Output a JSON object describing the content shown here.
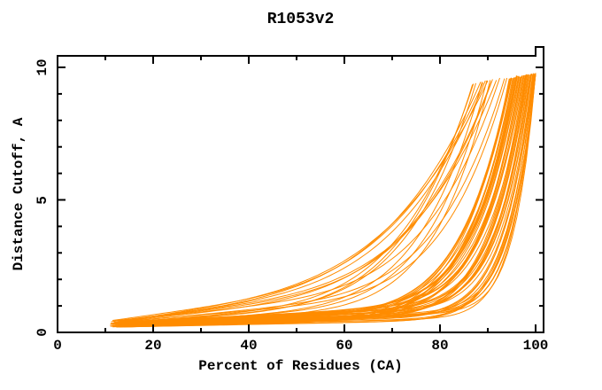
{
  "page": {
    "background": "#ffffff"
  },
  "chart_data": {
    "type": "line",
    "title": "R1053v2",
    "xlabel": "Percent of Residues (CA)",
    "ylabel": "Distance Cutoff, A",
    "xlim": [
      0,
      101.7
    ],
    "ylim": [
      0,
      10.43
    ],
    "x_ticks_major": [
      0,
      20,
      40,
      60,
      80,
      100
    ],
    "x_ticks_minor": [
      10,
      30,
      50,
      70,
      90
    ],
    "y_ticks_major": [
      0,
      5,
      10
    ],
    "y_ticks_minor": [
      1,
      2,
      3,
      4,
      6,
      7,
      8,
      9
    ],
    "grid": false,
    "legend": null,
    "line_color": "#ff8c00",
    "frame_color": "#000000",
    "n_series": 66,
    "series_model": "GDT cumulative curve per model: y = y0 + s*(x-x0) + (ytop - y0 - s*(xe-x0)) * ((x-x0)/(xe-x0))^p, for x in [x0, xe]; x = percent of CA residues, y = distance cutoff in Angstroms",
    "series_params_key": [
      "x0",
      "y0",
      "s",
      "xe",
      "p",
      "ytop"
    ],
    "series_params": [
      [
        11.0,
        0.3,
        0.005,
        96.0,
        9.0,
        9.65
      ],
      [
        11.4,
        0.33,
        0.0065,
        97.5,
        10.5,
        9.7
      ],
      [
        11.8,
        0.24,
        0.0045,
        95.0,
        8.0,
        9.6
      ],
      [
        12.2,
        0.36,
        0.008,
        98.0,
        11.0,
        9.72
      ],
      [
        12.6,
        0.31,
        0.0058,
        96.5,
        9.5,
        9.68
      ],
      [
        13.0,
        0.34,
        0.0072,
        99.0,
        12.0,
        9.74
      ],
      [
        13.4,
        0.22,
        0.0049,
        94.5,
        8.5,
        9.58
      ],
      [
        13.8,
        0.37,
        0.0085,
        97.0,
        10.0,
        9.66
      ],
      [
        11.2,
        0.32,
        0.0061,
        98.5,
        13.0,
        9.7
      ],
      [
        11.6,
        0.35,
        0.0078,
        95.5,
        9.0,
        9.62
      ],
      [
        12.0,
        0.25,
        0.0052,
        99.5,
        14.0,
        9.75
      ],
      [
        12.4,
        0.38,
        0.009,
        96.0,
        9.8,
        9.69
      ],
      [
        12.8,
        0.29,
        0.0047,
        97.8,
        11.5,
        9.71
      ],
      [
        13.2,
        0.33,
        0.0069,
        94.8,
        8.2,
        9.6
      ],
      [
        13.6,
        0.36,
        0.0082,
        98.2,
        12.5,
        9.73
      ],
      [
        14.0,
        0.31,
        0.0055,
        96.8,
        10.2,
        9.64
      ],
      [
        11.1,
        0.34,
        0.0074,
        99.2,
        13.5,
        9.76
      ],
      [
        11.5,
        0.21,
        0.0044,
        95.2,
        8.8,
        9.59
      ],
      [
        11.9,
        0.37,
        0.0087,
        97.2,
        10.8,
        9.7
      ],
      [
        12.3,
        0.32,
        0.0059,
        98.8,
        12.8,
        9.72
      ],
      [
        12.7,
        0.35,
        0.0076,
        95.8,
        9.2,
        9.63
      ],
      [
        13.1,
        0.26,
        0.0051,
        99.8,
        15.0,
        9.77
      ],
      [
        13.5,
        0.38,
        0.0092,
        96.2,
        9.6,
        9.67
      ],
      [
        13.9,
        0.29,
        0.0046,
        97.6,
        11.2,
        9.7
      ],
      [
        11.3,
        0.33,
        0.0067,
        94.6,
        8.4,
        9.57
      ],
      [
        11.7,
        0.36,
        0.0081,
        98.4,
        12.2,
        9.74
      ],
      [
        12.1,
        0.27,
        0.0054,
        96.6,
        10.4,
        9.65
      ],
      [
        12.5,
        0.34,
        0.0071,
        99.4,
        13.8,
        9.75
      ],
      [
        12.9,
        0.2,
        0.0043,
        95.4,
        8.6,
        9.6
      ],
      [
        13.3,
        0.37,
        0.0088,
        97.4,
        10.6,
        9.68
      ],
      [
        13.7,
        0.32,
        0.0062,
        98.6,
        12.6,
        9.73
      ],
      [
        14.1,
        0.35,
        0.0079,
        96.4,
        9.4,
        9.66
      ],
      [
        11.0,
        0.24,
        0.0053,
        99.6,
        14.5,
        9.78
      ],
      [
        11.8,
        0.38,
        0.0091,
        96.1,
        9.7,
        9.69
      ],
      [
        12.6,
        0.28,
        0.0048,
        97.9,
        11.8,
        9.71
      ],
      [
        13.4,
        0.33,
        0.0066,
        94.9,
        8.3,
        9.61
      ],
      [
        14.2,
        0.36,
        0.0083,
        98.1,
        12.3,
        9.74
      ],
      [
        11.4,
        0.26,
        0.0056,
        96.9,
        10.1,
        9.65
      ],
      [
        12.2,
        0.34,
        0.0073,
        99.1,
        13.2,
        9.76
      ],
      [
        13.0,
        0.22,
        0.0045,
        95.6,
        8.9,
        9.62
      ],
      [
        11.2,
        0.4,
        0.024,
        89.5,
        4.5,
        9.5
      ],
      [
        11.6,
        0.42,
        0.021,
        91.0,
        5.0,
        9.55
      ],
      [
        12.0,
        0.38,
        0.026,
        88.5,
        4.2,
        9.45
      ],
      [
        12.4,
        0.44,
        0.019,
        92.5,
        5.5,
        9.6
      ],
      [
        12.8,
        0.41,
        0.028,
        90.0,
        4.0,
        9.5
      ],
      [
        13.2,
        0.39,
        0.017,
        93.5,
        6.0,
        9.58
      ],
      [
        11.9,
        0.43,
        0.0225,
        91.8,
        4.8,
        9.52
      ],
      [
        12.7,
        0.4,
        0.015,
        94.0,
        6.5,
        9.6
      ],
      [
        13.5,
        0.42,
        0.0195,
        90.8,
        4.6,
        9.48
      ],
      [
        11.5,
        0.45,
        0.0255,
        89.0,
        4.3,
        9.42
      ],
      [
        11.1,
        0.23,
        0.004,
        99.9,
        16.0,
        9.7
      ],
      [
        11.7,
        0.31,
        0.005,
        100.0,
        18.0,
        9.75
      ],
      [
        12.3,
        0.2,
        0.0035,
        99.7,
        15.0,
        9.72
      ],
      [
        12.9,
        0.32,
        0.0055,
        100.0,
        20.0,
        9.78
      ],
      [
        13.5,
        0.27,
        0.0042,
        99.5,
        14.0,
        9.7
      ],
      [
        11.3,
        0.33,
        0.006,
        100.0,
        17.0,
        9.76
      ],
      [
        12.1,
        0.24,
        0.0038,
        99.8,
        19.0,
        9.74
      ],
      [
        13.1,
        0.31,
        0.0052,
        100.0,
        16.5,
        9.77
      ],
      [
        13.9,
        0.21,
        0.0036,
        99.6,
        15.5,
        9.71
      ],
      [
        12.5,
        0.32,
        0.0058,
        100.0,
        18.5,
        9.79
      ],
      [
        11.8,
        0.35,
        0.013,
        87.5,
        5.5,
        9.4
      ],
      [
        12.6,
        0.33,
        0.011,
        88.8,
        6.0,
        9.45
      ],
      [
        13.4,
        0.36,
        0.0125,
        86.8,
        5.2,
        9.35
      ],
      [
        12.2,
        0.34,
        0.0105,
        89.8,
        6.5,
        9.5
      ],
      [
        13.0,
        0.37,
        0.014,
        87.0,
        5.0,
        9.38
      ],
      [
        11.6,
        0.3,
        0.0095,
        90.5,
        7.0,
        9.52
      ]
    ]
  }
}
